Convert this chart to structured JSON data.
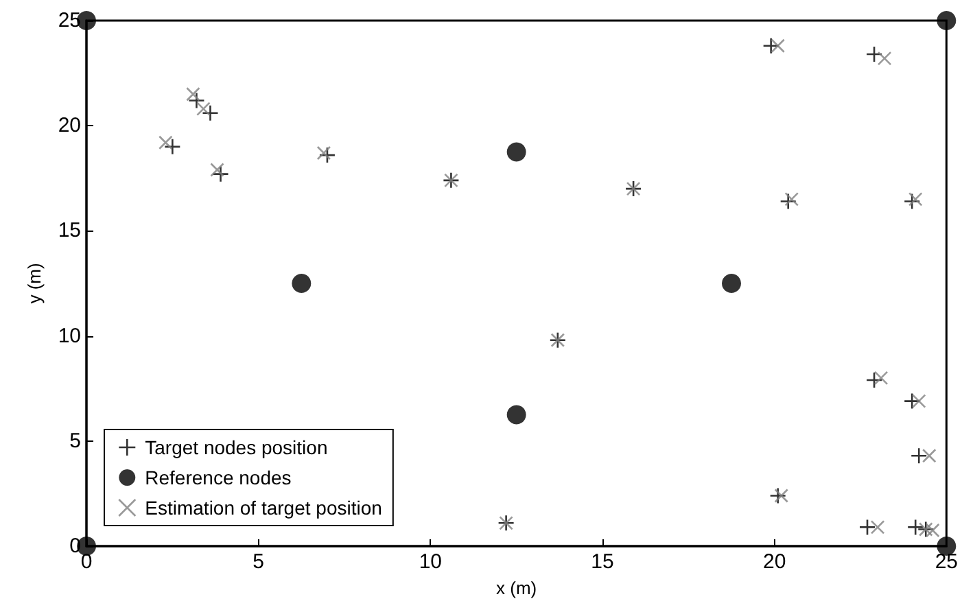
{
  "chart_data": {
    "type": "scatter",
    "xlabel": "x (m)",
    "ylabel": "y (m)",
    "xlim": [
      0,
      25
    ],
    "ylim": [
      0,
      25
    ],
    "xticks": [
      0,
      5,
      10,
      15,
      20,
      25
    ],
    "yticks": [
      0,
      5,
      10,
      15,
      20,
      25
    ],
    "grid": false,
    "legend": "bottom left",
    "series": [
      {
        "name": "Target nodes position",
        "color": "#000000",
        "marker": "plus",
        "x": [
          2.5,
          3.2,
          3.6,
          3.9,
          7.0,
          10.6,
          19.9,
          22.9,
          15.9,
          20.4,
          24.0,
          13.7,
          22.9,
          24.0,
          24.2,
          20.1,
          22.7,
          24.1,
          24.4,
          12.2
        ],
        "values": [
          19.0,
          21.2,
          20.6,
          17.7,
          18.6,
          17.4,
          23.8,
          23.4,
          17.0,
          16.4,
          16.4,
          9.8,
          7.9,
          6.9,
          4.3,
          2.4,
          0.9,
          0.9,
          0.8,
          1.1
        ]
      },
      {
        "name": "Reference nodes",
        "color": "#000000",
        "marker": "circle",
        "x": [
          0,
          0,
          25,
          25,
          12.5,
          6.25,
          18.75,
          12.5
        ],
        "values": [
          0,
          25,
          25,
          0,
          18.75,
          12.5,
          12.5,
          6.25
        ]
      },
      {
        "name": "Estimation of target position",
        "color": "#808080",
        "marker": "cross",
        "x": [
          2.3,
          3.1,
          3.4,
          3.8,
          6.9,
          10.6,
          20.1,
          23.2,
          15.9,
          20.5,
          24.1,
          13.7,
          23.1,
          24.2,
          24.5,
          20.2,
          23.0,
          24.4,
          24.6,
          12.2
        ],
        "values": [
          19.2,
          21.5,
          20.8,
          17.9,
          18.7,
          17.4,
          23.8,
          23.2,
          17.0,
          16.5,
          16.5,
          9.8,
          8.0,
          6.9,
          4.3,
          2.4,
          0.9,
          0.8,
          0.75,
          1.1
        ]
      }
    ]
  }
}
